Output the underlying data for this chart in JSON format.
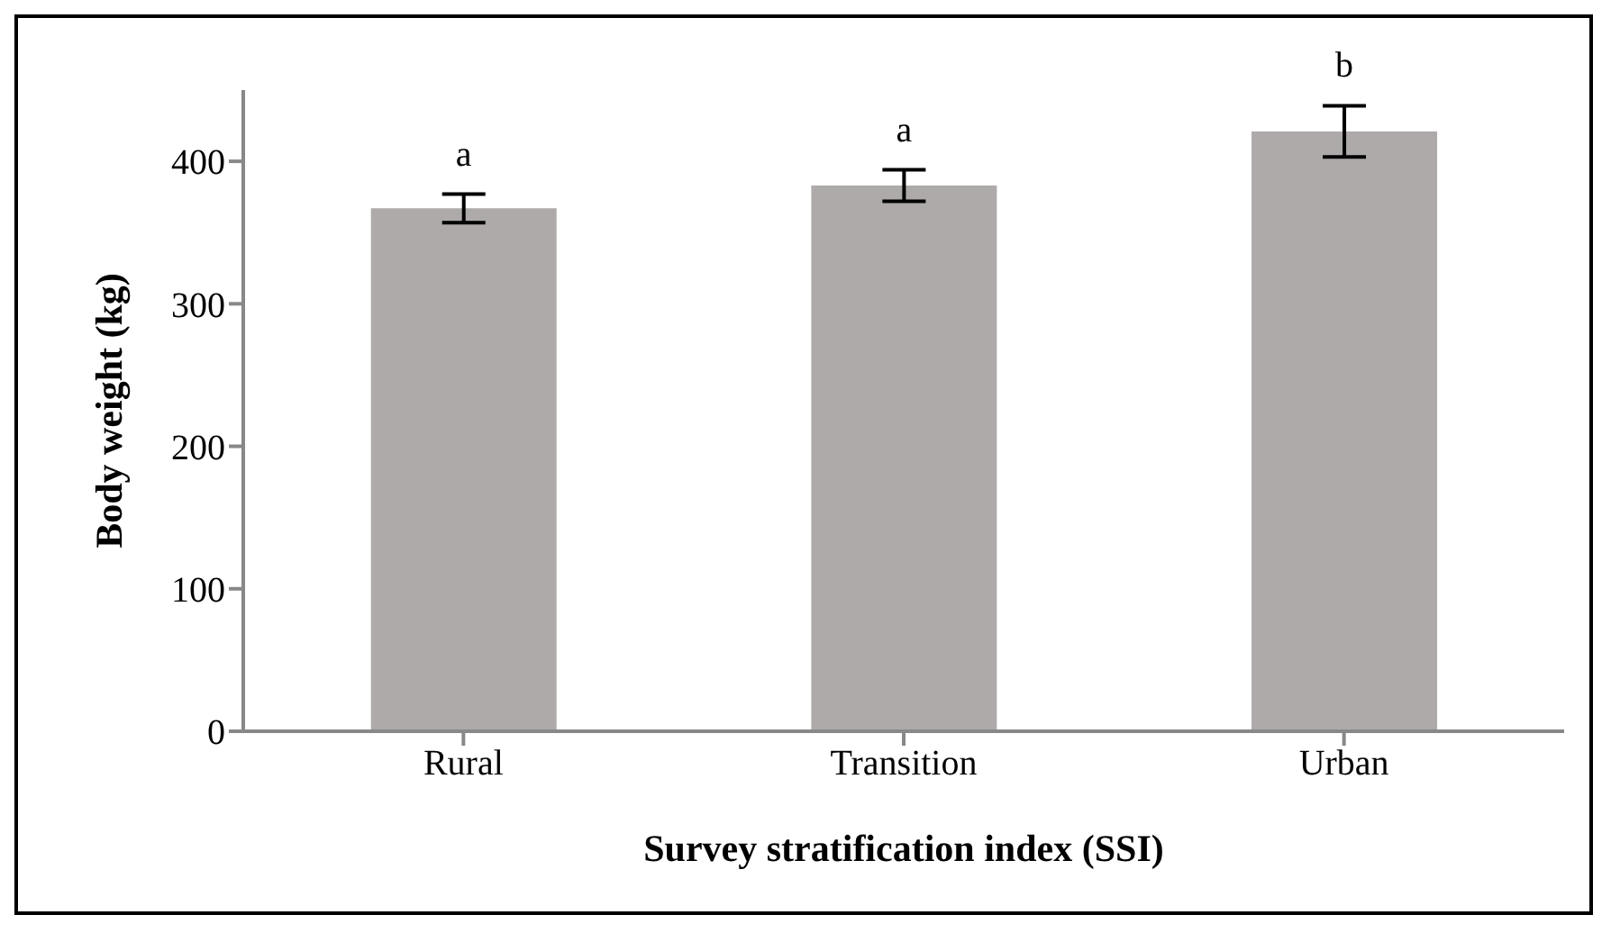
{
  "chart_data": {
    "type": "bar",
    "xlabel": "Survey stratification index (SSI)",
    "ylabel": "Body weight (kg)",
    "categories": [
      "Rural",
      "Transition",
      "Urban"
    ],
    "values": [
      367,
      383,
      421
    ],
    "errors": [
      10,
      11,
      18
    ],
    "color": "#aeaaaa",
    "ylim": [
      0,
      450
    ],
    "yticks": [
      0,
      100,
      200,
      300,
      400
    ],
    "annotations": [
      "a",
      "a",
      "b"
    ],
    "grid": false,
    "legend": false
  }
}
